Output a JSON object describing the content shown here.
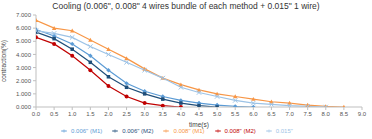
{
  "chart_data": {
    "type": "line",
    "title": "Cooling (0.006\", 0.008\" 4 wires bundle of each method + 0.015\" 1 wire)",
    "x_label": "time(s)",
    "y_label": "contraction(%)",
    "x": [
      0,
      0.5,
      1.0,
      1.5,
      2.0,
      2.5,
      3.0,
      3.5,
      4.0,
      4.5,
      5.0,
      5.5,
      6.0,
      6.5,
      7.0,
      7.5,
      8.0,
      8.5
    ],
    "xlim": [
      0,
      9
    ],
    "xticks": [
      {
        "value": 0,
        "label": "0.0"
      },
      {
        "value": 0.5,
        "label": "0.5"
      },
      {
        "value": 1,
        "label": "1.0"
      },
      {
        "value": 1.5,
        "label": "1.5"
      },
      {
        "value": 2,
        "label": "2.0"
      },
      {
        "value": 2.5,
        "label": "2.5"
      },
      {
        "value": 3,
        "label": "3.0"
      },
      {
        "value": 3.5,
        "label": "3.5"
      },
      {
        "value": 4,
        "label": "4.0"
      },
      {
        "value": 4.5,
        "label": "4.5"
      },
      {
        "value": 5,
        "label": "5.0"
      },
      {
        "value": 5.5,
        "label": "5.5"
      },
      {
        "value": 6,
        "label": "6.0"
      },
      {
        "value": 6.5,
        "label": "6.5"
      },
      {
        "value": 7,
        "label": "7.0"
      },
      {
        "value": 7.5,
        "label": "7.5"
      },
      {
        "value": 8,
        "label": "8.0"
      },
      {
        "value": 8.5,
        "label": "8.5"
      },
      {
        "value": 9,
        "label": "9.0"
      }
    ],
    "ylim": [
      0,
      7
    ],
    "yticks": [
      {
        "value": 0,
        "label": "0.000"
      },
      {
        "value": 1,
        "label": "1.000"
      },
      {
        "value": 2,
        "label": "2.000"
      },
      {
        "value": 3,
        "label": "3.000"
      },
      {
        "value": 4,
        "label": "4.000"
      },
      {
        "value": 5,
        "label": "5.000"
      },
      {
        "value": 6,
        "label": "6.000"
      },
      {
        "value": 7,
        "label": "7.000"
      }
    ],
    "grid": false,
    "legend": "bottom",
    "series": [
      {
        "name": "0.006\" (M1)",
        "color": "#5b9bd5",
        "marker": "diamond",
        "values": [
          5.9,
          5.4,
          4.8,
          3.9,
          2.8,
          1.8,
          1.2,
          0.8,
          0.5,
          0.3,
          0.15,
          0.05,
          0.0,
          null,
          null,
          null,
          null,
          null
        ]
      },
      {
        "name": "0.006\" (M2)",
        "color": "#1f4e79",
        "marker": "square",
        "values": [
          5.7,
          5.2,
          4.4,
          3.4,
          2.3,
          1.5,
          1.0,
          0.6,
          0.3,
          0.1,
          0.0,
          null,
          null,
          null,
          null,
          null,
          null,
          null
        ]
      },
      {
        "name": "0.008\" (M1)",
        "color": "#f79646",
        "marker": "triangle",
        "values": [
          6.6,
          6.0,
          5.8,
          5.1,
          4.4,
          3.7,
          2.9,
          2.2,
          1.7,
          1.3,
          1.0,
          0.8,
          0.6,
          0.4,
          0.3,
          0.15,
          0.05,
          0.0
        ]
      },
      {
        "name": "0.008\" (M2)",
        "color": "#c00000",
        "marker": "circle",
        "values": [
          5.3,
          4.8,
          3.9,
          2.8,
          1.6,
          0.8,
          0.3,
          0.1,
          0.0,
          null,
          null,
          null,
          null,
          null,
          null,
          null,
          null,
          null
        ]
      },
      {
        "name": "0.015\"",
        "color": "#9dc3e6",
        "marker": "cross",
        "values": [
          5.8,
          5.6,
          5.3,
          4.6,
          4.0,
          3.4,
          2.8,
          2.2,
          1.5,
          1.1,
          0.8,
          0.5,
          0.3,
          0.2,
          0.1,
          0.05,
          0.0,
          null
        ]
      }
    ]
  }
}
